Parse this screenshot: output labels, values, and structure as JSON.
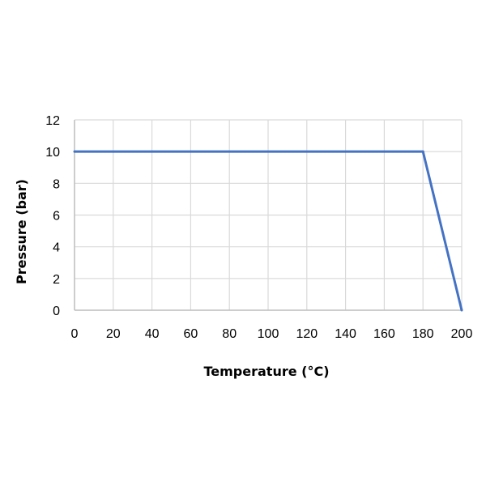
{
  "chart_data": {
    "type": "line",
    "title": "",
    "xlabel": "Temperature (°C)",
    "ylabel": "Pressure (bar)",
    "xlim": [
      0,
      200
    ],
    "ylim": [
      0,
      12
    ],
    "x_ticks": [
      0,
      20,
      40,
      60,
      80,
      100,
      120,
      140,
      160,
      180,
      200
    ],
    "y_ticks": [
      0,
      2,
      4,
      6,
      8,
      10,
      12
    ],
    "grid": true,
    "legend": "none",
    "series": [
      {
        "color": "#4472c4",
        "points": [
          {
            "x": 0,
            "y": 10
          },
          {
            "x": 180,
            "y": 10
          },
          {
            "x": 200,
            "y": 0
          }
        ]
      }
    ],
    "colors": {
      "line": "#4472c4",
      "grid": "#d9d9d9",
      "axis": "#bfbfbf"
    }
  }
}
